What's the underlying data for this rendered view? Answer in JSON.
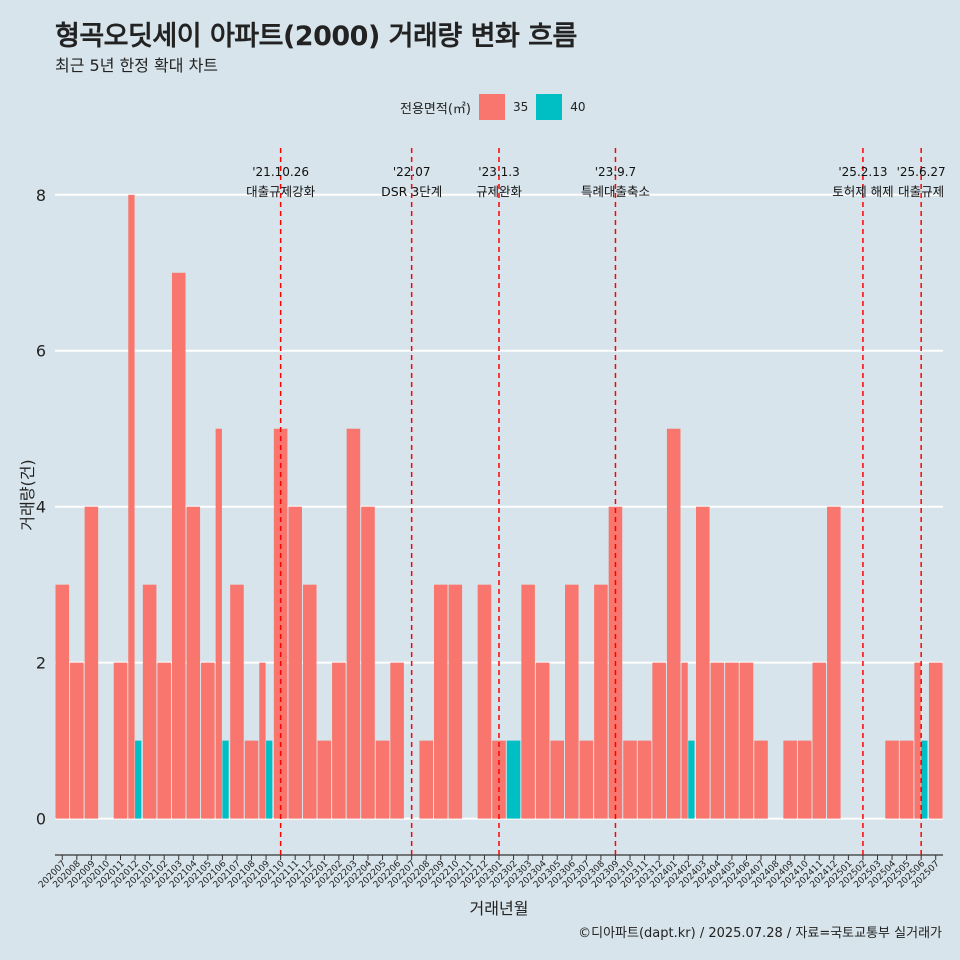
{
  "title": "형곡오딧세이 아파트(2000) 거래량 변화 흐름",
  "subtitle": "최근 5년 한정 확대 차트",
  "caption": "©디아파트(dapt.kr) / 2025.07.28 / 자료=국토교통부 실거래가",
  "legend": {
    "title": "전용면적(㎡)",
    "items": [
      {
        "label": "35",
        "color": "#f8766d"
      },
      {
        "label": "40",
        "color": "#00bfc4"
      }
    ]
  },
  "chart_data": {
    "type": "bar",
    "stacked": false,
    "xlabel": "거래년월",
    "ylabel": "거래량(건)",
    "ylim": [
      -0.3,
      8.6
    ],
    "yticks": [
      0,
      2,
      4,
      6,
      8
    ],
    "grid": true,
    "legend_position": "top",
    "categories": [
      "202007",
      "202008",
      "202009",
      "202010",
      "202011",
      "202012",
      "202101",
      "202102",
      "202103",
      "202104",
      "202105",
      "202106",
      "202107",
      "202108",
      "202109",
      "202110",
      "202111",
      "202112",
      "202201",
      "202202",
      "202203",
      "202204",
      "202205",
      "202206",
      "202207",
      "202208",
      "202209",
      "202210",
      "202211",
      "202212",
      "202301",
      "202302",
      "202303",
      "202304",
      "202305",
      "202306",
      "202307",
      "202308",
      "202309",
      "202310",
      "202311",
      "202312",
      "202401",
      "202402",
      "202403",
      "202404",
      "202405",
      "202406",
      "202407",
      "202408",
      "202409",
      "202410",
      "202411",
      "202412",
      "202501",
      "202502",
      "202503",
      "202504",
      "202505",
      "202506",
      "202507"
    ],
    "series": [
      {
        "name": "35",
        "color": "#f8766d",
        "values": [
          3,
          2,
          4,
          0,
          2,
          8,
          3,
          2,
          7,
          4,
          2,
          5,
          3,
          1,
          2,
          5,
          4,
          3,
          1,
          2,
          5,
          4,
          1,
          2,
          0,
          1,
          3,
          3,
          0,
          3,
          1,
          0,
          3,
          2,
          1,
          3,
          1,
          3,
          4,
          1,
          1,
          2,
          5,
          2,
          4,
          2,
          2,
          2,
          1,
          0,
          1,
          1,
          2,
          4,
          0,
          0,
          0,
          1,
          1,
          2,
          2
        ]
      },
      {
        "name": "40",
        "color": "#00bfc4",
        "values": [
          0,
          0,
          0,
          0,
          0,
          1,
          0,
          0,
          0,
          0,
          0,
          1,
          0,
          0,
          1,
          0,
          0,
          0,
          0,
          0,
          0,
          0,
          0,
          0,
          0,
          0,
          0,
          0,
          0,
          0,
          0,
          1,
          0,
          0,
          0,
          0,
          0,
          0,
          0,
          0,
          0,
          0,
          0,
          1,
          0,
          0,
          0,
          0,
          0,
          0,
          0,
          0,
          0,
          0,
          0,
          0,
          0,
          0,
          0,
          1,
          0
        ]
      }
    ],
    "annotations": [
      {
        "date": "'21.10.26",
        "label": "대출규제강화",
        "at": "202110"
      },
      {
        "date": "'22.07",
        "label": "DSR 3단계",
        "at": "202207"
      },
      {
        "date": "'23.1.3",
        "label": "규제완화",
        "at": "202301"
      },
      {
        "date": "'23.9.7",
        "label": "특례대출축소",
        "at": "202309"
      },
      {
        "date": "'25.2.13",
        "label": "토허제 해제",
        "at": "202502"
      },
      {
        "date": "'25.6.27",
        "label": "대출규제",
        "at": "202506"
      }
    ]
  }
}
